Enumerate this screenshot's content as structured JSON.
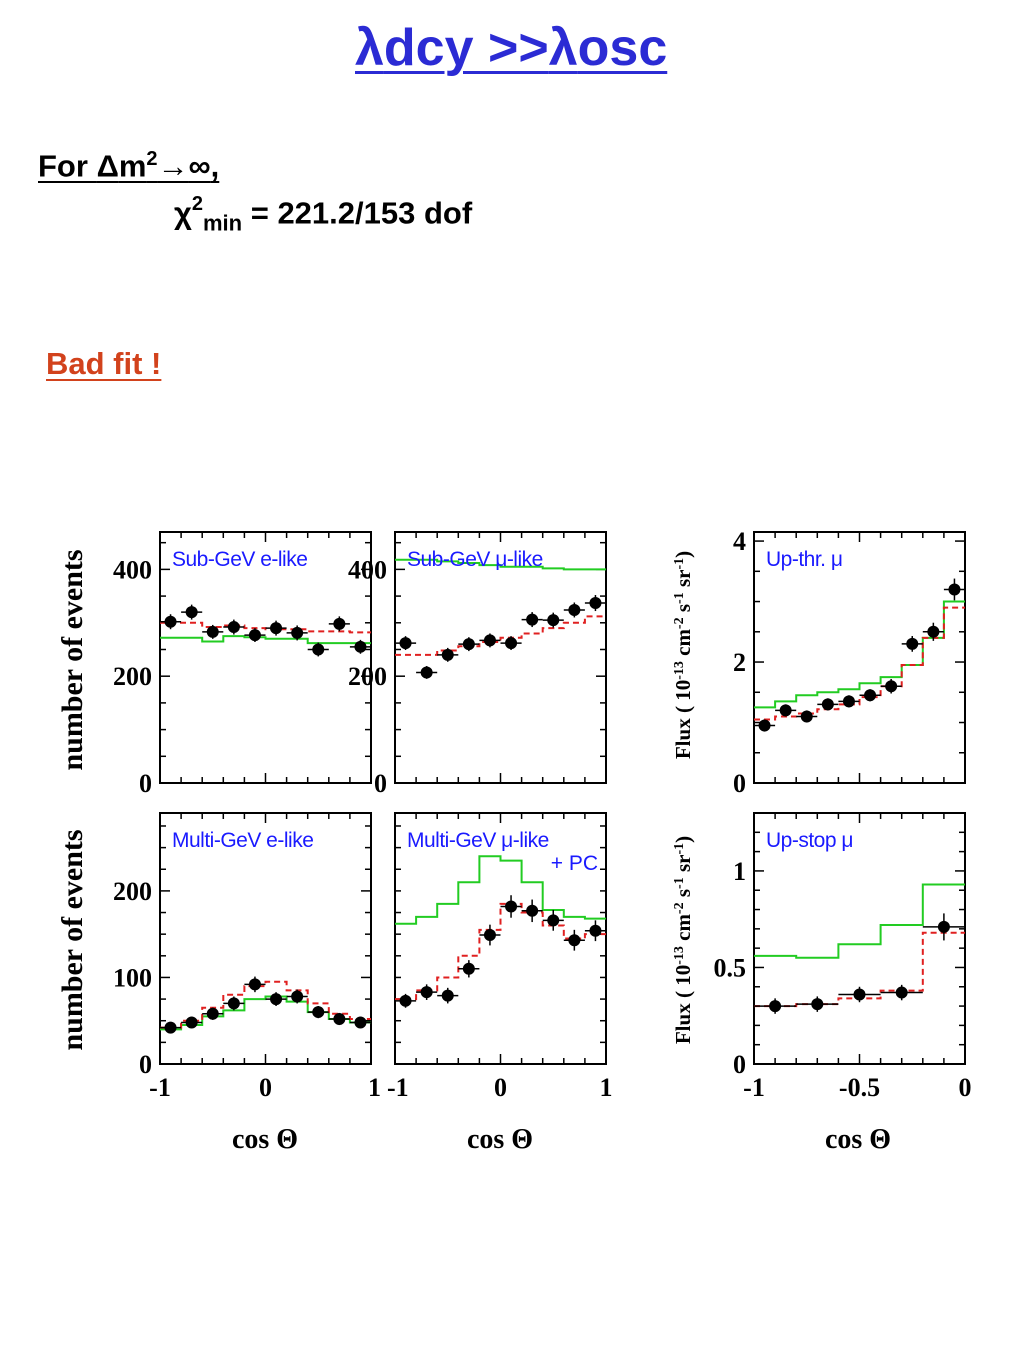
{
  "heading": {
    "lambda1": "λ",
    "text1": "dcy >>",
    "lambda2": "λ",
    "text2": "osc"
  },
  "condition": {
    "prefix": "For ",
    "delta": "Δ",
    "m": "m",
    "sq": "2",
    "arrow": "→",
    "infinity": "∞",
    "comma": ","
  },
  "chi2": {
    "chi": "χ",
    "sq": "2",
    "sub": "min",
    "value": " = 221.2/153 dof"
  },
  "verdict": "Bad fit !",
  "colors": {
    "heading": "#2b2bd4",
    "verdict": "#d2421c",
    "label_blue": "#1a1aff",
    "expectation_green": "#22cc22",
    "fit_red": "#e02020",
    "data_black": "#000000"
  },
  "chart_data": [
    {
      "type": "scatter",
      "panel": "sub-gev-e",
      "label": "Sub-GeV e-like",
      "xlim": [
        -1,
        1
      ],
      "ylim": [
        0,
        470
      ],
      "yticks": [
        0,
        200,
        400
      ],
      "xticks": [],
      "data_x": [
        -0.9,
        -0.7,
        -0.5,
        -0.3,
        -0.1,
        0.1,
        0.3,
        0.5,
        0.7,
        0.9
      ],
      "data_y": [
        302,
        320,
        283,
        292,
        277,
        290,
        281,
        250,
        298,
        255
      ],
      "data_err": [
        14,
        14,
        13,
        14,
        13,
        14,
        14,
        13,
        14,
        13
      ],
      "green_edges": [
        -1,
        -0.8,
        -0.6,
        -0.4,
        -0.2,
        0,
        0.2,
        0.4,
        0.6,
        0.8,
        1
      ],
      "green_values": [
        272,
        272,
        265,
        275,
        273,
        270,
        270,
        262,
        262,
        262
      ],
      "red_edges": [
        -1,
        -0.8,
        -0.6,
        -0.4,
        -0.2,
        0,
        0.2,
        0.4,
        0.6,
        0.8,
        1
      ],
      "red_values": [
        300,
        300,
        292,
        295,
        290,
        288,
        288,
        284,
        284,
        282
      ]
    },
    {
      "type": "scatter",
      "panel": "sub-gev-mu",
      "label": "Sub-GeV μ-like",
      "xlim": [
        -1,
        1
      ],
      "ylim": [
        0,
        470
      ],
      "yticks": [
        0,
        200,
        400
      ],
      "xticks": [],
      "data_x": [
        -0.9,
        -0.7,
        -0.5,
        -0.3,
        -0.1,
        0.1,
        0.3,
        0.5,
        0.7,
        0.9
      ],
      "data_y": [
        262,
        207,
        240,
        260,
        267,
        262,
        306,
        305,
        324,
        337
      ],
      "data_err": [
        13,
        12,
        13,
        13,
        13,
        13,
        14,
        14,
        14,
        15
      ],
      "green_edges": [
        -1,
        -0.8,
        -0.6,
        -0.4,
        -0.2,
        0,
        0.2,
        0.4,
        0.6,
        0.8,
        1
      ],
      "green_values": [
        418,
        418,
        415,
        412,
        408,
        405,
        405,
        402,
        400,
        400
      ],
      "red_edges": [
        -1,
        -0.8,
        -0.6,
        -0.4,
        -0.2,
        0,
        0.2,
        0.4,
        0.6,
        0.8,
        1
      ],
      "red_values": [
        240,
        240,
        248,
        256,
        264,
        272,
        280,
        290,
        300,
        312
      ]
    },
    {
      "type": "scatter",
      "panel": "up-thr-mu",
      "label": "Up-thr. μ",
      "xlim": [
        -1,
        0
      ],
      "ylim": [
        0,
        4.15
      ],
      "yticks": [
        0,
        2,
        4
      ],
      "xticks": [],
      "data_x": [
        -0.95,
        -0.85,
        -0.75,
        -0.65,
        -0.55,
        -0.45,
        -0.35,
        -0.25,
        -0.15,
        -0.05
      ],
      "data_y": [
        0.95,
        1.2,
        1.1,
        1.3,
        1.35,
        1.45,
        1.6,
        2.3,
        2.5,
        3.2
      ],
      "data_err": [
        0.1,
        0.1,
        0.1,
        0.1,
        0.1,
        0.1,
        0.12,
        0.13,
        0.15,
        0.18
      ],
      "green_edges": [
        -1,
        -0.9,
        -0.8,
        -0.7,
        -0.6,
        -0.5,
        -0.4,
        -0.3,
        -0.2,
        -0.1,
        0
      ],
      "green_values": [
        1.25,
        1.35,
        1.45,
        1.5,
        1.55,
        1.65,
        1.75,
        1.95,
        2.4,
        3.0
      ],
      "red_edges": [
        -1,
        -0.9,
        -0.8,
        -0.7,
        -0.6,
        -0.5,
        -0.4,
        -0.3,
        -0.2,
        -0.1,
        0
      ],
      "red_values": [
        1.05,
        1.1,
        1.15,
        1.22,
        1.3,
        1.42,
        1.6,
        1.95,
        2.4,
        2.9
      ]
    },
    {
      "type": "scatter",
      "panel": "multi-gev-e",
      "label": "Multi-GeV e-like",
      "xlim": [
        -1,
        1
      ],
      "ylim": [
        0,
        290
      ],
      "yticks": [
        0,
        100,
        200
      ],
      "xticks": [
        "-1",
        "0",
        "1"
      ],
      "xlabel": "cos Θ",
      "data_x": [
        -0.9,
        -0.7,
        -0.5,
        -0.3,
        -0.1,
        0.1,
        0.3,
        0.5,
        0.7,
        0.9
      ],
      "data_y": [
        42,
        48,
        58,
        70,
        92,
        75,
        78,
        60,
        52,
        48
      ],
      "data_err": [
        6,
        6,
        7,
        8,
        9,
        8,
        8,
        7,
        7,
        6
      ],
      "green_edges": [
        -1,
        -0.8,
        -0.6,
        -0.4,
        -0.2,
        0,
        0.2,
        0.4,
        0.6,
        0.8,
        1
      ],
      "green_values": [
        40,
        45,
        55,
        62,
        75,
        78,
        72,
        60,
        52,
        48
      ],
      "red_edges": [
        -1,
        -0.8,
        -0.6,
        -0.4,
        -0.2,
        0,
        0.2,
        0.4,
        0.6,
        0.8,
        1
      ],
      "red_values": [
        42,
        50,
        65,
        80,
        90,
        95,
        85,
        70,
        58,
        52
      ]
    },
    {
      "type": "scatter",
      "panel": "multi-gev-mu",
      "label": "Multi-GeV μ-like",
      "label2": "+ PC",
      "xlim": [
        -1,
        1
      ],
      "ylim": [
        0,
        290
      ],
      "yticks": [],
      "xticks": [
        "-1",
        "0",
        "1"
      ],
      "xlabel": "cos Θ",
      "data_x": [
        -0.9,
        -0.7,
        -0.5,
        -0.3,
        -0.1,
        0.1,
        0.3,
        0.5,
        0.7,
        0.9
      ],
      "data_y": [
        73,
        83,
        79,
        110,
        149,
        182,
        177,
        166,
        143,
        154
      ],
      "data_err": [
        8,
        9,
        9,
        10,
        12,
        13,
        13,
        12,
        12,
        12
      ],
      "green_edges": [
        -1,
        -0.8,
        -0.6,
        -0.4,
        -0.2,
        0,
        0.2,
        0.4,
        0.6,
        0.8,
        1
      ],
      "green_values": [
        162,
        170,
        185,
        210,
        240,
        235,
        210,
        178,
        170,
        168
      ],
      "red_edges": [
        -1,
        -0.8,
        -0.6,
        -0.4,
        -0.2,
        0,
        0.2,
        0.4,
        0.6,
        0.8,
        1
      ],
      "red_values": [
        75,
        85,
        100,
        125,
        155,
        185,
        175,
        160,
        145,
        150
      ]
    },
    {
      "type": "scatter",
      "panel": "up-stop-mu",
      "label": "Up-stop μ",
      "xlim": [
        -1,
        0
      ],
      "ylim": [
        0,
        1.3
      ],
      "yticks": [
        0,
        0.5,
        1
      ],
      "xticks": [
        "-1",
        "-0.5",
        "0"
      ],
      "xlabel": "cos Θ",
      "data_x": [
        -0.9,
        -0.7,
        -0.5,
        -0.3,
        -0.1
      ],
      "data_y": [
        0.3,
        0.31,
        0.36,
        0.37,
        0.71
      ],
      "data_err": [
        0.04,
        0.04,
        0.04,
        0.04,
        0.07
      ],
      "green_edges": [
        -1,
        -0.8,
        -0.6,
        -0.4,
        -0.2,
        0
      ],
      "green_values": [
        0.56,
        0.55,
        0.62,
        0.72,
        0.93
      ],
      "red_edges": [
        -1,
        -0.8,
        -0.6,
        -0.4,
        -0.2,
        0
      ],
      "red_values": [
        0.3,
        0.31,
        0.34,
        0.38,
        0.68
      ]
    }
  ],
  "axis_labels": {
    "left_y_top": "number of events",
    "left_y_bottom": "number of events",
    "flux_prefix": "Flux ( 10",
    "flux_exp": "-13",
    "flux_units": " cm",
    "flux_cm_exp": "-2",
    "flux_s": " s",
    "flux_s_exp": "-1",
    "flux_sr": " sr",
    "flux_sr_exp": "-1",
    "flux_close": ")",
    "xlabel": "cos Θ"
  }
}
